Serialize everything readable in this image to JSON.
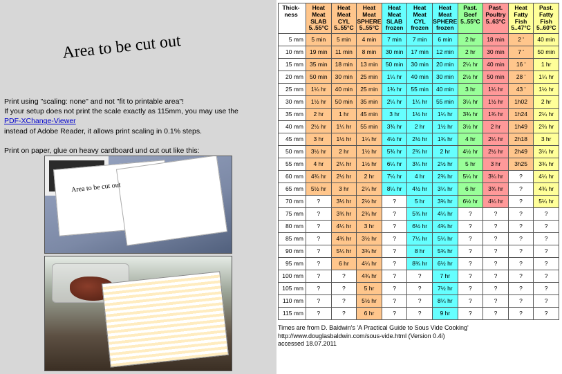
{
  "left": {
    "title": "Area to be cut out",
    "line1": "Print using \"scaling: none\" and not \"fit to printable area\"!",
    "line2": "If your setup does not print the scale exactly as 115mm, you may use the",
    "link_text": "PDF-XChange-Viewer",
    "link_href": "#",
    "line3": "instead of Adobe Reader, it allows print scaling in 0.1% steps.",
    "line4": "Print on paper, glue on heavy cardboard und cut out like this:"
  },
  "table": {
    "header_colors": [
      "#ffffff",
      "#ffc68c",
      "#ffc68c",
      "#ffc68c",
      "#66ffff",
      "#66ffff",
      "#66ffff",
      "#99ff99",
      "#ff9999",
      "#ffff99",
      "#ffff99"
    ],
    "col_colors": [
      "#ffffff",
      "#ffc68c",
      "#ffc68c",
      "#ffc68c",
      "#66ffff",
      "#66ffff",
      "#66ffff",
      "#99ff99",
      "#ff9999",
      "#ffc68c",
      "#ffff99"
    ],
    "headers": [
      [
        "Thick-",
        "ness",
        "",
        "",
        ""
      ],
      [
        "Heat",
        "Meat",
        "SLAB",
        "5..55°C"
      ],
      [
        "Heat",
        "Meat",
        "CYL",
        "5..55°C"
      ],
      [
        "Heat",
        "Meat",
        "SPHERE",
        "5..55°C"
      ],
      [
        "Heat",
        "Meat",
        "SLAB",
        "frozen"
      ],
      [
        "Heat",
        "Meat",
        "CYL",
        "frozen"
      ],
      [
        "Heat",
        "Meat",
        "SPHERE",
        "frozen"
      ],
      [
        "Past.",
        "Beef",
        "",
        "5..55°C"
      ],
      [
        "Past.",
        "Poultry",
        "",
        "5..63°C"
      ],
      [
        "Heat",
        "Fatty",
        "Fish",
        "5..47°C"
      ],
      [
        "Past.",
        "Fatty",
        "Fish",
        "5..60°C"
      ]
    ],
    "rows": [
      [
        "5 mm",
        "5 min",
        "5 min",
        "4 min",
        "7 min",
        "7 min",
        "6 min",
        "2 hr",
        "18 min",
        "2 '",
        "40 min"
      ],
      [
        "10 mm",
        "19 min",
        "11 min",
        "8 min",
        "30 min",
        "17 min",
        "12 min",
        "2 hr",
        "30 min",
        "7 '",
        "50 min"
      ],
      [
        "15 mm",
        "35 min",
        "18 min",
        "13 min",
        "50 min",
        "30 min",
        "20 min",
        "2¼ hr",
        "40 min",
        "16 '",
        "1 hr"
      ],
      [
        "20 mm",
        "50 min",
        "30 min",
        "25 min",
        "1¼ hr",
        "40 min",
        "30 min",
        "2½ hr",
        "50 min",
        "28 '",
        "1¼ hr"
      ],
      [
        "25 mm",
        "1¼ hr",
        "40 min",
        "25 min",
        "1¾ hr",
        "55 min",
        "40 min",
        "3 hr",
        "1¼ hr",
        "43 '",
        "1½ hr"
      ],
      [
        "30 mm",
        "1½ hr",
        "50 min",
        "35 min",
        "2¼ hr",
        "1¼ hr",
        "55 min",
        "3¼ hr",
        "1½ hr",
        "1h02",
        "2 hr"
      ],
      [
        "35 mm",
        "2 hr",
        "1 hr",
        "45 min",
        "3 hr",
        "1½ hr",
        "1¼ hr",
        "3¾ hr",
        "1¾ hr",
        "1h24",
        "2¼ hr"
      ],
      [
        "40 mm",
        "2½ hr",
        "1¼ hr",
        "55 min",
        "3¾ hr",
        "2 hr",
        "1½ hr",
        "3½ hr",
        "2 hr",
        "1h49",
        "2⅔ hr"
      ],
      [
        "45 mm",
        "3 hr",
        "1½ hr",
        "1¼ hr",
        "4½ hr",
        "2½ hr",
        "1¾ hr",
        "4 hr",
        "2¼ hr",
        "2h18",
        "3 hr"
      ],
      [
        "50 mm",
        "3½ hr",
        "2 hr",
        "1½ hr",
        "5¾ hr",
        "2¾ hr",
        "2 hr",
        "4½ hr",
        "2½ hr",
        "2h49",
        "3¼ hr"
      ],
      [
        "55 mm",
        "4 hr",
        "2¼ hr",
        "1½ hr",
        "6¼ hr",
        "3¼ hr",
        "2½ hr",
        "5 hr",
        "3 hr",
        "3h25",
        "3¾ hr"
      ],
      [
        "60 mm",
        "4¾ hr",
        "2½ hr",
        "2 hr",
        "7¼ hr",
        "4 hr",
        "2¾ hr",
        "5¼ hr",
        "3¼ hr",
        "?",
        "4¼ hr"
      ],
      [
        "65 mm",
        "5½ hr",
        "3 hr",
        "2¼ hr",
        "8¼ hr",
        "4½ hr",
        "3¼ hr",
        "6 hr",
        "3¾ hr",
        "?",
        "4¾ hr"
      ],
      [
        "70 mm",
        "?",
        "3⅓ hr",
        "2½ hr",
        "?",
        "5 hr",
        "3¾ hr",
        "6½ hr",
        "4¼ hr",
        "?",
        "5¼ hr"
      ],
      [
        "75 mm",
        "?",
        "3¾ hr",
        "2¾ hr",
        "?",
        "5¾ hr",
        "4¼ hr",
        "?",
        "?",
        "?",
        "?"
      ],
      [
        "80 mm",
        "?",
        "4¼ hr",
        "3 hr",
        "?",
        "6½ hr",
        "4¾ hr",
        "?",
        "?",
        "?",
        "?"
      ],
      [
        "85 mm",
        "?",
        "4¾ hr",
        "3½ hr",
        "?",
        "7¼ hr",
        "5¼ hr",
        "?",
        "?",
        "?",
        "?"
      ],
      [
        "90 mm",
        "?",
        "5¼ hr",
        "3¾ hr",
        "?",
        "8 hr",
        "5¾ hr",
        "?",
        "?",
        "?",
        "?"
      ],
      [
        "95 mm",
        "?",
        "6 hr",
        "4¼ hr",
        "?",
        "8¾ hr",
        "6½ hr",
        "?",
        "?",
        "?",
        "?"
      ],
      [
        "100 mm",
        "?",
        "?",
        "4¾ hr",
        "?",
        "?",
        "7 hr",
        "?",
        "?",
        "?",
        "?"
      ],
      [
        "105 mm",
        "?",
        "?",
        "5 hr",
        "?",
        "?",
        "7½ hr",
        "?",
        "?",
        "?",
        "?"
      ],
      [
        "110 mm",
        "?",
        "?",
        "5½ hr",
        "?",
        "?",
        "8¼ hr",
        "?",
        "?",
        "?",
        "?"
      ],
      [
        "115 mm",
        "?",
        "?",
        "6 hr",
        "?",
        "?",
        "9 hr",
        "?",
        "?",
        "?",
        "?"
      ]
    ]
  },
  "footnote": {
    "l1": "Times are from D. Baldwin's 'A Practical Guide to Sous Vide Cooking'",
    "l2": "http://www.douglasbaldwin.com/sous-vide.html (Version 0.4i)",
    "l3": "accessed 18.07.2011"
  }
}
